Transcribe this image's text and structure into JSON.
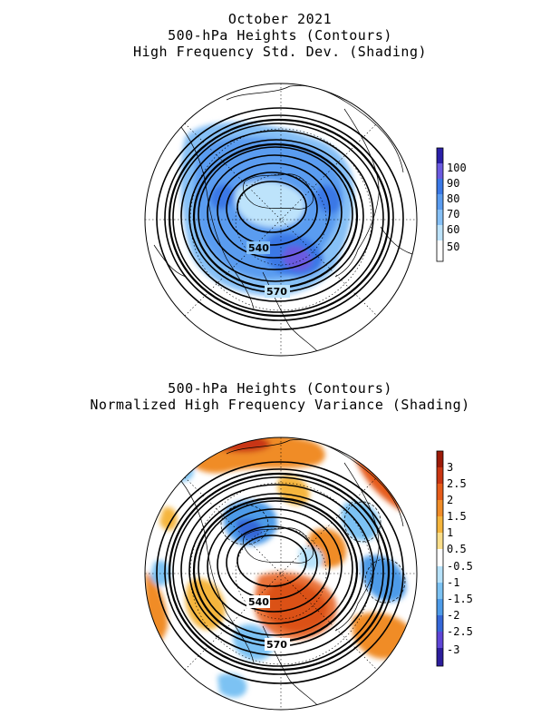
{
  "top_panel": {
    "title_lines": [
      "October 2021",
      "500-hPa Heights (Contours)",
      "High Frequency Std. Dev. (Shading)"
    ],
    "contour_labels": [
      "540",
      "570"
    ],
    "colorbar": {
      "ticks": [
        "100",
        "90",
        "80",
        "70",
        "60",
        "50"
      ],
      "colors": [
        "#2a1fa8",
        "#6a5ae0",
        "#3a78e6",
        "#5a9cf0",
        "#86c0f6",
        "#bde3fb",
        "#ffffff"
      ]
    }
  },
  "bottom_panel": {
    "title_lines": [
      "500-hPa Heights (Contours)",
      "Normalized High Frequency Variance (Shading)"
    ],
    "contour_labels": [
      "540",
      "570"
    ],
    "colorbar": {
      "ticks": [
        "3",
        "2.5",
        "2",
        "1.5",
        "1",
        "0.5",
        "-0.5",
        "-1",
        "-1.5",
        "-2",
        "-2.5",
        "-3"
      ],
      "colors": [
        "#9c1a08",
        "#c93512",
        "#e65c1a",
        "#f08c28",
        "#f5b53c",
        "#fade8a",
        "#ffffff",
        "#b7e2fa",
        "#7cc2f3",
        "#4d9be8",
        "#3567d8",
        "#5e45d6",
        "#2c1d9c"
      ]
    }
  }
}
